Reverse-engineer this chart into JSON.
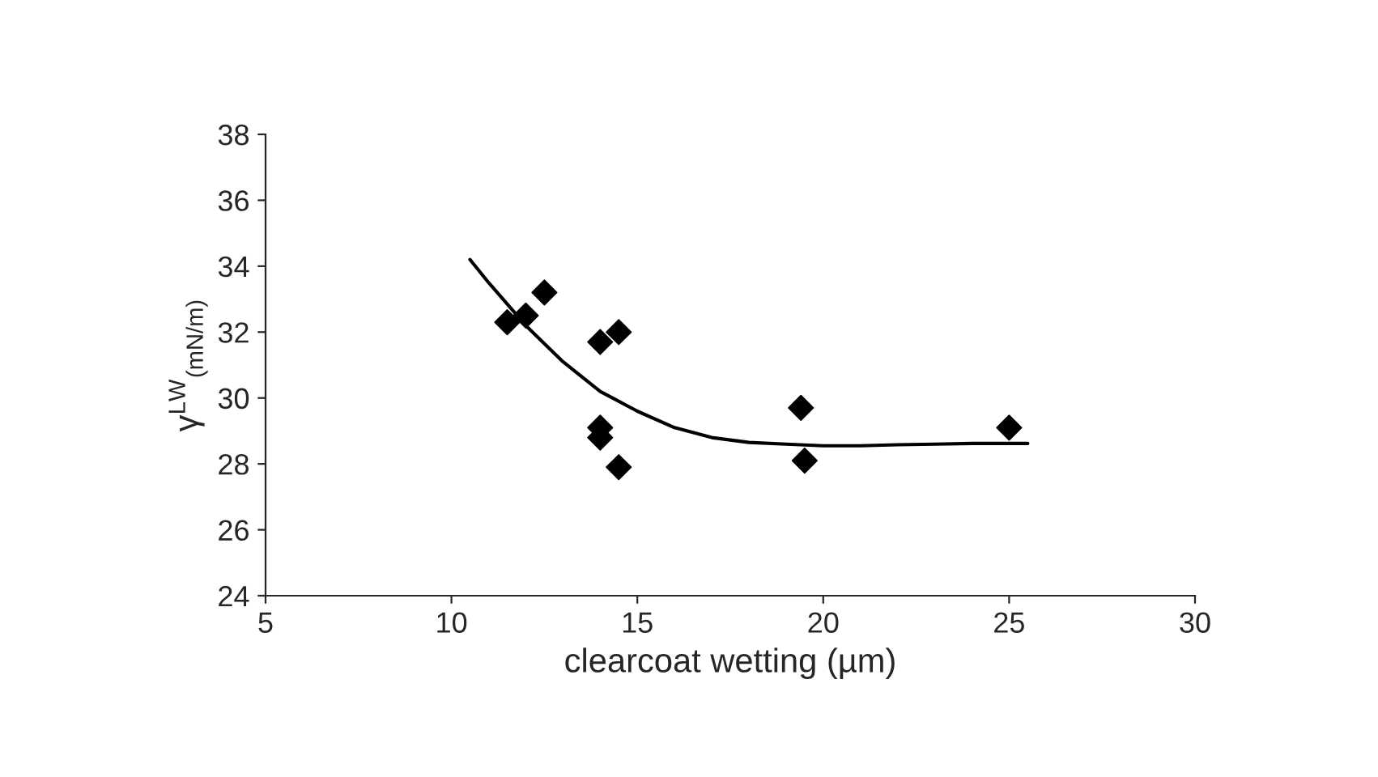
{
  "chart_data": {
    "type": "scatter",
    "xlabel": "clearcoat wetting (µm)",
    "ylabel": "γ$^{LW}$$_{(mN/m)}$",
    "xlim": [
      5,
      30
    ],
    "xticks": [
      5,
      10,
      15,
      20,
      25,
      30
    ],
    "ylim": [
      24,
      38
    ],
    "yticks": [
      24,
      26,
      28,
      30,
      32,
      34,
      36,
      38
    ],
    "grid": false,
    "legend": false,
    "series": [
      {
        "color": "#000000",
        "marker": "diamond",
        "x": [
          11.5,
          12,
          12.5,
          14,
          14.5,
          14,
          14,
          14.5,
          19.4,
          19.5,
          25
        ],
        "values": [
          32.3,
          32.5,
          33.2,
          31.7,
          32,
          29.1,
          28.8,
          27.9,
          29.7,
          28.1,
          29.1
        ]
      },
      {
        "type": "line",
        "color": "#000000",
        "marker": "none",
        "line_style": "solid",
        "x": [
          10.5,
          11,
          12,
          13,
          14,
          15,
          16,
          17,
          18,
          19,
          20,
          21,
          22,
          23,
          24,
          25.5
        ],
        "values": [
          34.2,
          33.5,
          32.2,
          31.1,
          30.2,
          29.6,
          29.1,
          28.8,
          28.65,
          28.6,
          28.55,
          28.55,
          28.58,
          28.6,
          28.62,
          28.62
        ]
      }
    ]
  }
}
